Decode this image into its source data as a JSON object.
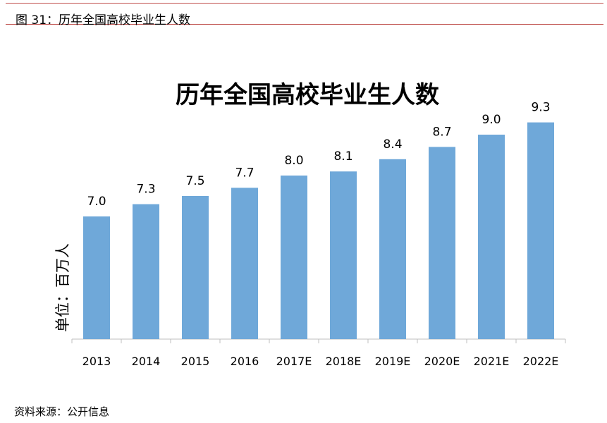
{
  "figure_caption": "图 31：历年全国高校毕业生人数",
  "source_note": "资料来源：公开信息",
  "chart_data": {
    "type": "bar",
    "title": "历年全国高校毕业生人数",
    "xlabel": "",
    "ylabel": "单位：百万人",
    "categories": [
      "2013",
      "2014",
      "2015",
      "2016",
      "2017E",
      "2018E",
      "2019E",
      "2020E",
      "2021E",
      "2022E"
    ],
    "values": [
      7.0,
      7.3,
      7.5,
      7.7,
      8.0,
      8.1,
      8.4,
      8.7,
      9.0,
      9.3
    ],
    "data_labels": [
      "7.0",
      "7.3",
      "7.5",
      "7.7",
      "8.0",
      "8.1",
      "8.4",
      "8.7",
      "9.0",
      "9.3"
    ],
    "ylim": [
      4.0,
      10.0
    ],
    "grid": false,
    "legend": "none",
    "bar_color": "#6fa8d9"
  }
}
